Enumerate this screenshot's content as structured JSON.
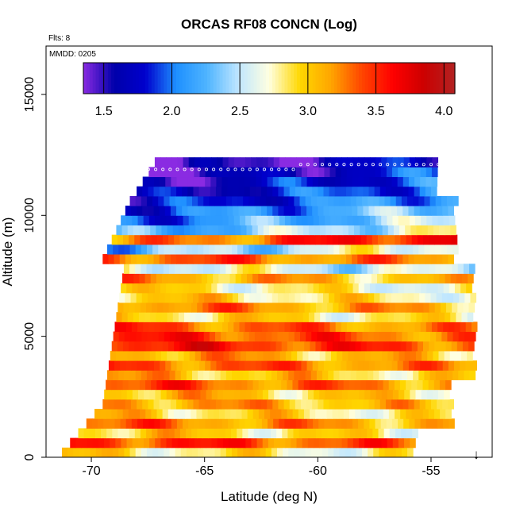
{
  "chart_data": {
    "type": "heatmap",
    "title": "ORCAS RF08 CONCN (Log)",
    "annotations": [
      "Flts: 8",
      "MMDD: 0205"
    ],
    "xlabel": "Latitude (deg N)",
    "ylabel": "Altitude (m)",
    "xlim": [
      -72,
      -52.3
    ],
    "ylim": [
      0,
      17000
    ],
    "x_ticks": [
      -70,
      -65,
      -60,
      -55
    ],
    "x_tick_labels": [
      "-70",
      "-65",
      "-60",
      "-55"
    ],
    "y_ticks": [
      0,
      5000,
      10000,
      15000
    ],
    "y_tick_labels": [
      "0",
      "5000",
      "10000",
      "15000"
    ],
    "colorbar": {
      "range": [
        1.35,
        4.08
      ],
      "ticks": [
        1.5,
        2.0,
        2.5,
        3.0,
        3.5,
        4.0
      ],
      "tick_labels": [
        "1.5",
        "2.0",
        "2.5",
        "3.0",
        "3.5",
        "4.0"
      ],
      "colors": [
        "#8a2be2",
        "#0000aa",
        "#0000cd",
        "#1e90ff",
        "#4fb4ff",
        "#bfe6ff",
        "#ffffe0",
        "#ffd700",
        "#ffa500",
        "#ff4500",
        "#ff0000",
        "#cc0000",
        "#b22222"
      ]
    },
    "bands": [
      {
        "alt": 0,
        "value": 2.8
      },
      {
        "alt": 400,
        "value": 3.4
      },
      {
        "alt": 800,
        "value": 2.9
      },
      {
        "alt": 1200,
        "value": 3.2
      },
      {
        "alt": 1600,
        "value": 2.9
      },
      {
        "alt": 2000,
        "value": 3.1
      },
      {
        "alt": 2400,
        "value": 3.0
      },
      {
        "alt": 2800,
        "value": 3.3
      },
      {
        "alt": 3200,
        "value": 3.0
      },
      {
        "alt": 3600,
        "value": 3.3
      },
      {
        "alt": 4000,
        "value": 3.1
      },
      {
        "alt": 4400,
        "value": 3.5
      },
      {
        "alt": 4800,
        "value": 3.4
      },
      {
        "alt": 5200,
        "value": 3.3
      },
      {
        "alt": 5600,
        "value": 2.9
      },
      {
        "alt": 6000,
        "value": 3.2
      },
      {
        "alt": 6400,
        "value": 2.9
      },
      {
        "alt": 6800,
        "value": 2.8
      },
      {
        "alt": 7200,
        "value": 3.1
      },
      {
        "alt": 7600,
        "value": 2.6
      },
      {
        "alt": 8000,
        "value": 3.3
      },
      {
        "alt": 8400,
        "value": 2.5
      },
      {
        "alt": 8800,
        "value": 3.4
      },
      {
        "alt": 9200,
        "value": 2.4
      },
      {
        "alt": 9600,
        "value": 2.2
      },
      {
        "alt": 10000,
        "value": 2.1
      },
      {
        "alt": 10400,
        "value": 1.9
      },
      {
        "alt": 10800,
        "value": 1.8
      },
      {
        "alt": 11200,
        "value": 1.7
      },
      {
        "alt": 11600,
        "value": 1.6
      },
      {
        "alt": 12000,
        "value": 1.5
      }
    ],
    "arrow_marker": {
      "x": -53,
      "symbol": "↓"
    }
  }
}
